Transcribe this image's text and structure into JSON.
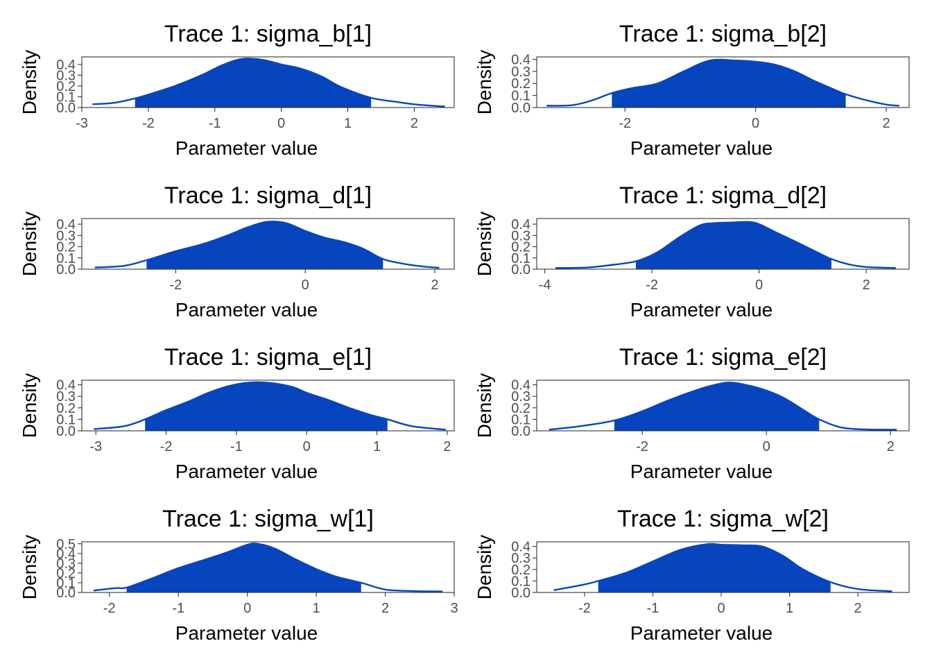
{
  "figure": {
    "background": "#ffffff",
    "fill_color": "#0645BE",
    "line_color": "#0645BE"
  },
  "chart_data": [
    {
      "type": "area",
      "title": "Trace 1: sigma_b[1]",
      "xlabel": "Parameter value",
      "ylabel": "Density",
      "xlim": [
        -3,
        2.6
      ],
      "ylim": [
        0,
        0.47
      ],
      "xticks": [
        -3,
        -2,
        -1,
        0,
        1,
        2
      ],
      "xtick_labels": [
        "-3",
        "-2",
        "-1",
        "0",
        "1",
        "2"
      ],
      "yticks": [
        0,
        0.1,
        0.2,
        0.3,
        0.4
      ],
      "ytick_labels": [
        "0.0",
        "0.1",
        "0.2",
        "0.3",
        "0.4"
      ],
      "shaded_interval": [
        -2.2,
        1.35
      ],
      "x": [
        -2.84,
        -2.5,
        -2.2,
        -2.0,
        -1.6,
        -1.2,
        -0.9,
        -0.6,
        -0.3,
        0.0,
        0.3,
        0.6,
        0.9,
        1.35,
        1.7,
        2.0,
        2.3,
        2.46
      ],
      "y": [
        0.03,
        0.045,
        0.085,
        0.12,
        0.2,
        0.3,
        0.39,
        0.45,
        0.445,
        0.4,
        0.36,
        0.29,
        0.19,
        0.09,
        0.055,
        0.03,
        0.015,
        0.01
      ]
    },
    {
      "type": "area",
      "title": "Trace 1: sigma_b[2]",
      "xlabel": "Parameter value",
      "ylabel": "Density",
      "xlim": [
        -3.35,
        2.35
      ],
      "ylim": [
        0,
        0.42
      ],
      "xticks": [
        -2,
        0,
        2
      ],
      "xtick_labels": [
        "-2",
        "0",
        "2"
      ],
      "yticks": [
        0,
        0.1,
        0.2,
        0.3,
        0.4
      ],
      "ytick_labels": [
        "0.0",
        "0.1",
        "0.2",
        "0.3",
        "0.4"
      ],
      "shaded_interval": [
        -2.2,
        1.38
      ],
      "x": [
        -3.2,
        -2.8,
        -2.5,
        -2.2,
        -1.9,
        -1.5,
        -1.1,
        -0.7,
        -0.3,
        0.0,
        0.3,
        0.6,
        0.9,
        1.2,
        1.38,
        1.7,
        2.0,
        2.2
      ],
      "y": [
        0.015,
        0.02,
        0.06,
        0.12,
        0.16,
        0.2,
        0.3,
        0.39,
        0.39,
        0.38,
        0.355,
        0.3,
        0.22,
        0.15,
        0.11,
        0.06,
        0.025,
        0.015
      ]
    },
    {
      "type": "area",
      "title": "Trace 1: sigma_d[1]",
      "xlabel": "Parameter value",
      "ylabel": "Density",
      "xlim": [
        -3.45,
        2.3
      ],
      "ylim": [
        0,
        0.45
      ],
      "xticks": [
        -2,
        0,
        2
      ],
      "xtick_labels": [
        "-2",
        "0",
        "2"
      ],
      "yticks": [
        0,
        0.1,
        0.2,
        0.3,
        0.4
      ],
      "ytick_labels": [
        "0.0",
        "0.1",
        "0.2",
        "0.3",
        "0.4"
      ],
      "shaded_interval": [
        -2.45,
        1.2
      ],
      "x": [
        -3.25,
        -2.8,
        -2.45,
        -2.0,
        -1.6,
        -1.2,
        -0.9,
        -0.6,
        -0.3,
        0.0,
        0.3,
        0.6,
        0.9,
        1.2,
        1.5,
        1.8,
        2.07
      ],
      "y": [
        0.015,
        0.03,
        0.08,
        0.16,
        0.22,
        0.3,
        0.37,
        0.42,
        0.41,
        0.34,
        0.28,
        0.24,
        0.18,
        0.09,
        0.05,
        0.025,
        0.012
      ]
    },
    {
      "type": "area",
      "title": "Trace 1: sigma_d[2]",
      "xlabel": "Parameter value",
      "ylabel": "Density",
      "xlim": [
        -4.15,
        2.8
      ],
      "ylim": [
        0,
        0.45
      ],
      "xticks": [
        -4,
        -2,
        0,
        2
      ],
      "xtick_labels": [
        "-4",
        "-2",
        "0",
        "2"
      ],
      "yticks": [
        0,
        0.1,
        0.2,
        0.3,
        0.4
      ],
      "ytick_labels": [
        "0.0",
        "0.1",
        "0.2",
        "0.3",
        "0.4"
      ],
      "shaded_interval": [
        -2.3,
        1.35
      ],
      "x": [
        -3.8,
        -3.2,
        -2.8,
        -2.3,
        -1.9,
        -1.5,
        -1.1,
        -0.8,
        -0.5,
        -0.2,
        0.0,
        0.3,
        0.7,
        1.0,
        1.35,
        1.7,
        2.0,
        2.55
      ],
      "y": [
        0.01,
        0.015,
        0.035,
        0.07,
        0.15,
        0.28,
        0.39,
        0.41,
        0.415,
        0.42,
        0.4,
        0.33,
        0.24,
        0.17,
        0.09,
        0.04,
        0.02,
        0.01
      ]
    },
    {
      "type": "area",
      "title": "Trace 1: sigma_e[1]",
      "xlabel": "Parameter value",
      "ylabel": "Density",
      "xlim": [
        -3.2,
        2.1
      ],
      "ylim": [
        0,
        0.44
      ],
      "xticks": [
        -3,
        -2,
        -1,
        0,
        1,
        2
      ],
      "xtick_labels": [
        "-3",
        "-2",
        "-1",
        "0",
        "1",
        "2"
      ],
      "yticks": [
        0,
        0.1,
        0.2,
        0.3,
        0.4
      ],
      "ytick_labels": [
        "0.0",
        "0.1",
        "0.2",
        "0.3",
        "0.4"
      ],
      "shaded_interval": [
        -2.3,
        1.15
      ],
      "x": [
        -3.03,
        -2.6,
        -2.3,
        -2.0,
        -1.7,
        -1.4,
        -1.1,
        -0.8,
        -0.5,
        -0.2,
        0.0,
        0.3,
        0.6,
        0.9,
        1.15,
        1.5,
        1.98
      ],
      "y": [
        0.015,
        0.04,
        0.1,
        0.18,
        0.25,
        0.33,
        0.39,
        0.42,
        0.415,
        0.38,
        0.33,
        0.27,
        0.2,
        0.14,
        0.1,
        0.04,
        0.01
      ]
    },
    {
      "type": "area",
      "title": "Trace 1: sigma_e[2]",
      "xlabel": "Parameter value",
      "ylabel": "Density",
      "xlim": [
        -3.7,
        2.3
      ],
      "ylim": [
        0,
        0.44
      ],
      "xticks": [
        -2,
        0,
        2
      ],
      "xtick_labels": [
        "-2",
        "0",
        "2"
      ],
      "yticks": [
        0,
        0.1,
        0.2,
        0.3,
        0.4
      ],
      "ytick_labels": [
        "0.0",
        "0.1",
        "0.2",
        "0.3",
        "0.4"
      ],
      "shaded_interval": [
        -2.45,
        0.85
      ],
      "x": [
        -3.5,
        -3.0,
        -2.45,
        -2.0,
        -1.6,
        -1.2,
        -0.9,
        -0.6,
        -0.3,
        0.0,
        0.3,
        0.6,
        0.85,
        1.2,
        1.6,
        2.1
      ],
      "y": [
        0.01,
        0.04,
        0.09,
        0.17,
        0.26,
        0.34,
        0.39,
        0.42,
        0.395,
        0.35,
        0.28,
        0.18,
        0.1,
        0.03,
        0.012,
        0.01
      ]
    },
    {
      "type": "area",
      "title": "Trace 1: sigma_w[1]",
      "xlabel": "Parameter value",
      "ylabel": "Density",
      "xlim": [
        -2.4,
        3.0
      ],
      "ylim": [
        0,
        0.52
      ],
      "xticks": [
        -2,
        -1,
        0,
        1,
        2,
        3
      ],
      "xtick_labels": [
        "-2",
        "-1",
        "0",
        "1",
        "2",
        "3"
      ],
      "yticks": [
        0,
        0.1,
        0.2,
        0.3,
        0.4,
        0.5
      ],
      "ytick_labels": [
        "0.0",
        "0.1",
        "0.2",
        "0.3",
        "0.4",
        "0.5"
      ],
      "shaded_interval": [
        -1.75,
        1.65
      ],
      "x": [
        -2.23,
        -1.9,
        -1.75,
        -1.4,
        -1.0,
        -0.6,
        -0.3,
        0.0,
        0.15,
        0.4,
        0.7,
        1.0,
        1.3,
        1.65,
        2.0,
        2.4,
        2.83
      ],
      "y": [
        0.02,
        0.045,
        0.05,
        0.14,
        0.25,
        0.34,
        0.41,
        0.49,
        0.5,
        0.45,
        0.34,
        0.24,
        0.16,
        0.1,
        0.03,
        0.015,
        0.01
      ]
    },
    {
      "type": "area",
      "title": "Trace 1: sigma_w[2]",
      "xlabel": "Parameter value",
      "ylabel": "Density",
      "xlim": [
        -2.7,
        2.75
      ],
      "ylim": [
        0,
        0.44
      ],
      "xticks": [
        -2,
        -1,
        0,
        1,
        2
      ],
      "xtick_labels": [
        "-2",
        "-1",
        "0",
        "1",
        "2"
      ],
      "yticks": [
        0,
        0.1,
        0.2,
        0.3,
        0.4
      ],
      "ytick_labels": [
        "0.0",
        "0.1",
        "0.2",
        "0.3",
        "0.4"
      ],
      "shaded_interval": [
        -1.8,
        1.6
      ],
      "x": [
        -2.45,
        -2.0,
        -1.8,
        -1.4,
        -1.0,
        -0.6,
        -0.2,
        0.0,
        0.3,
        0.6,
        0.9,
        1.2,
        1.6,
        2.0,
        2.5
      ],
      "y": [
        0.02,
        0.07,
        0.1,
        0.17,
        0.27,
        0.37,
        0.42,
        0.415,
        0.41,
        0.4,
        0.32,
        0.2,
        0.09,
        0.03,
        0.01
      ]
    }
  ]
}
